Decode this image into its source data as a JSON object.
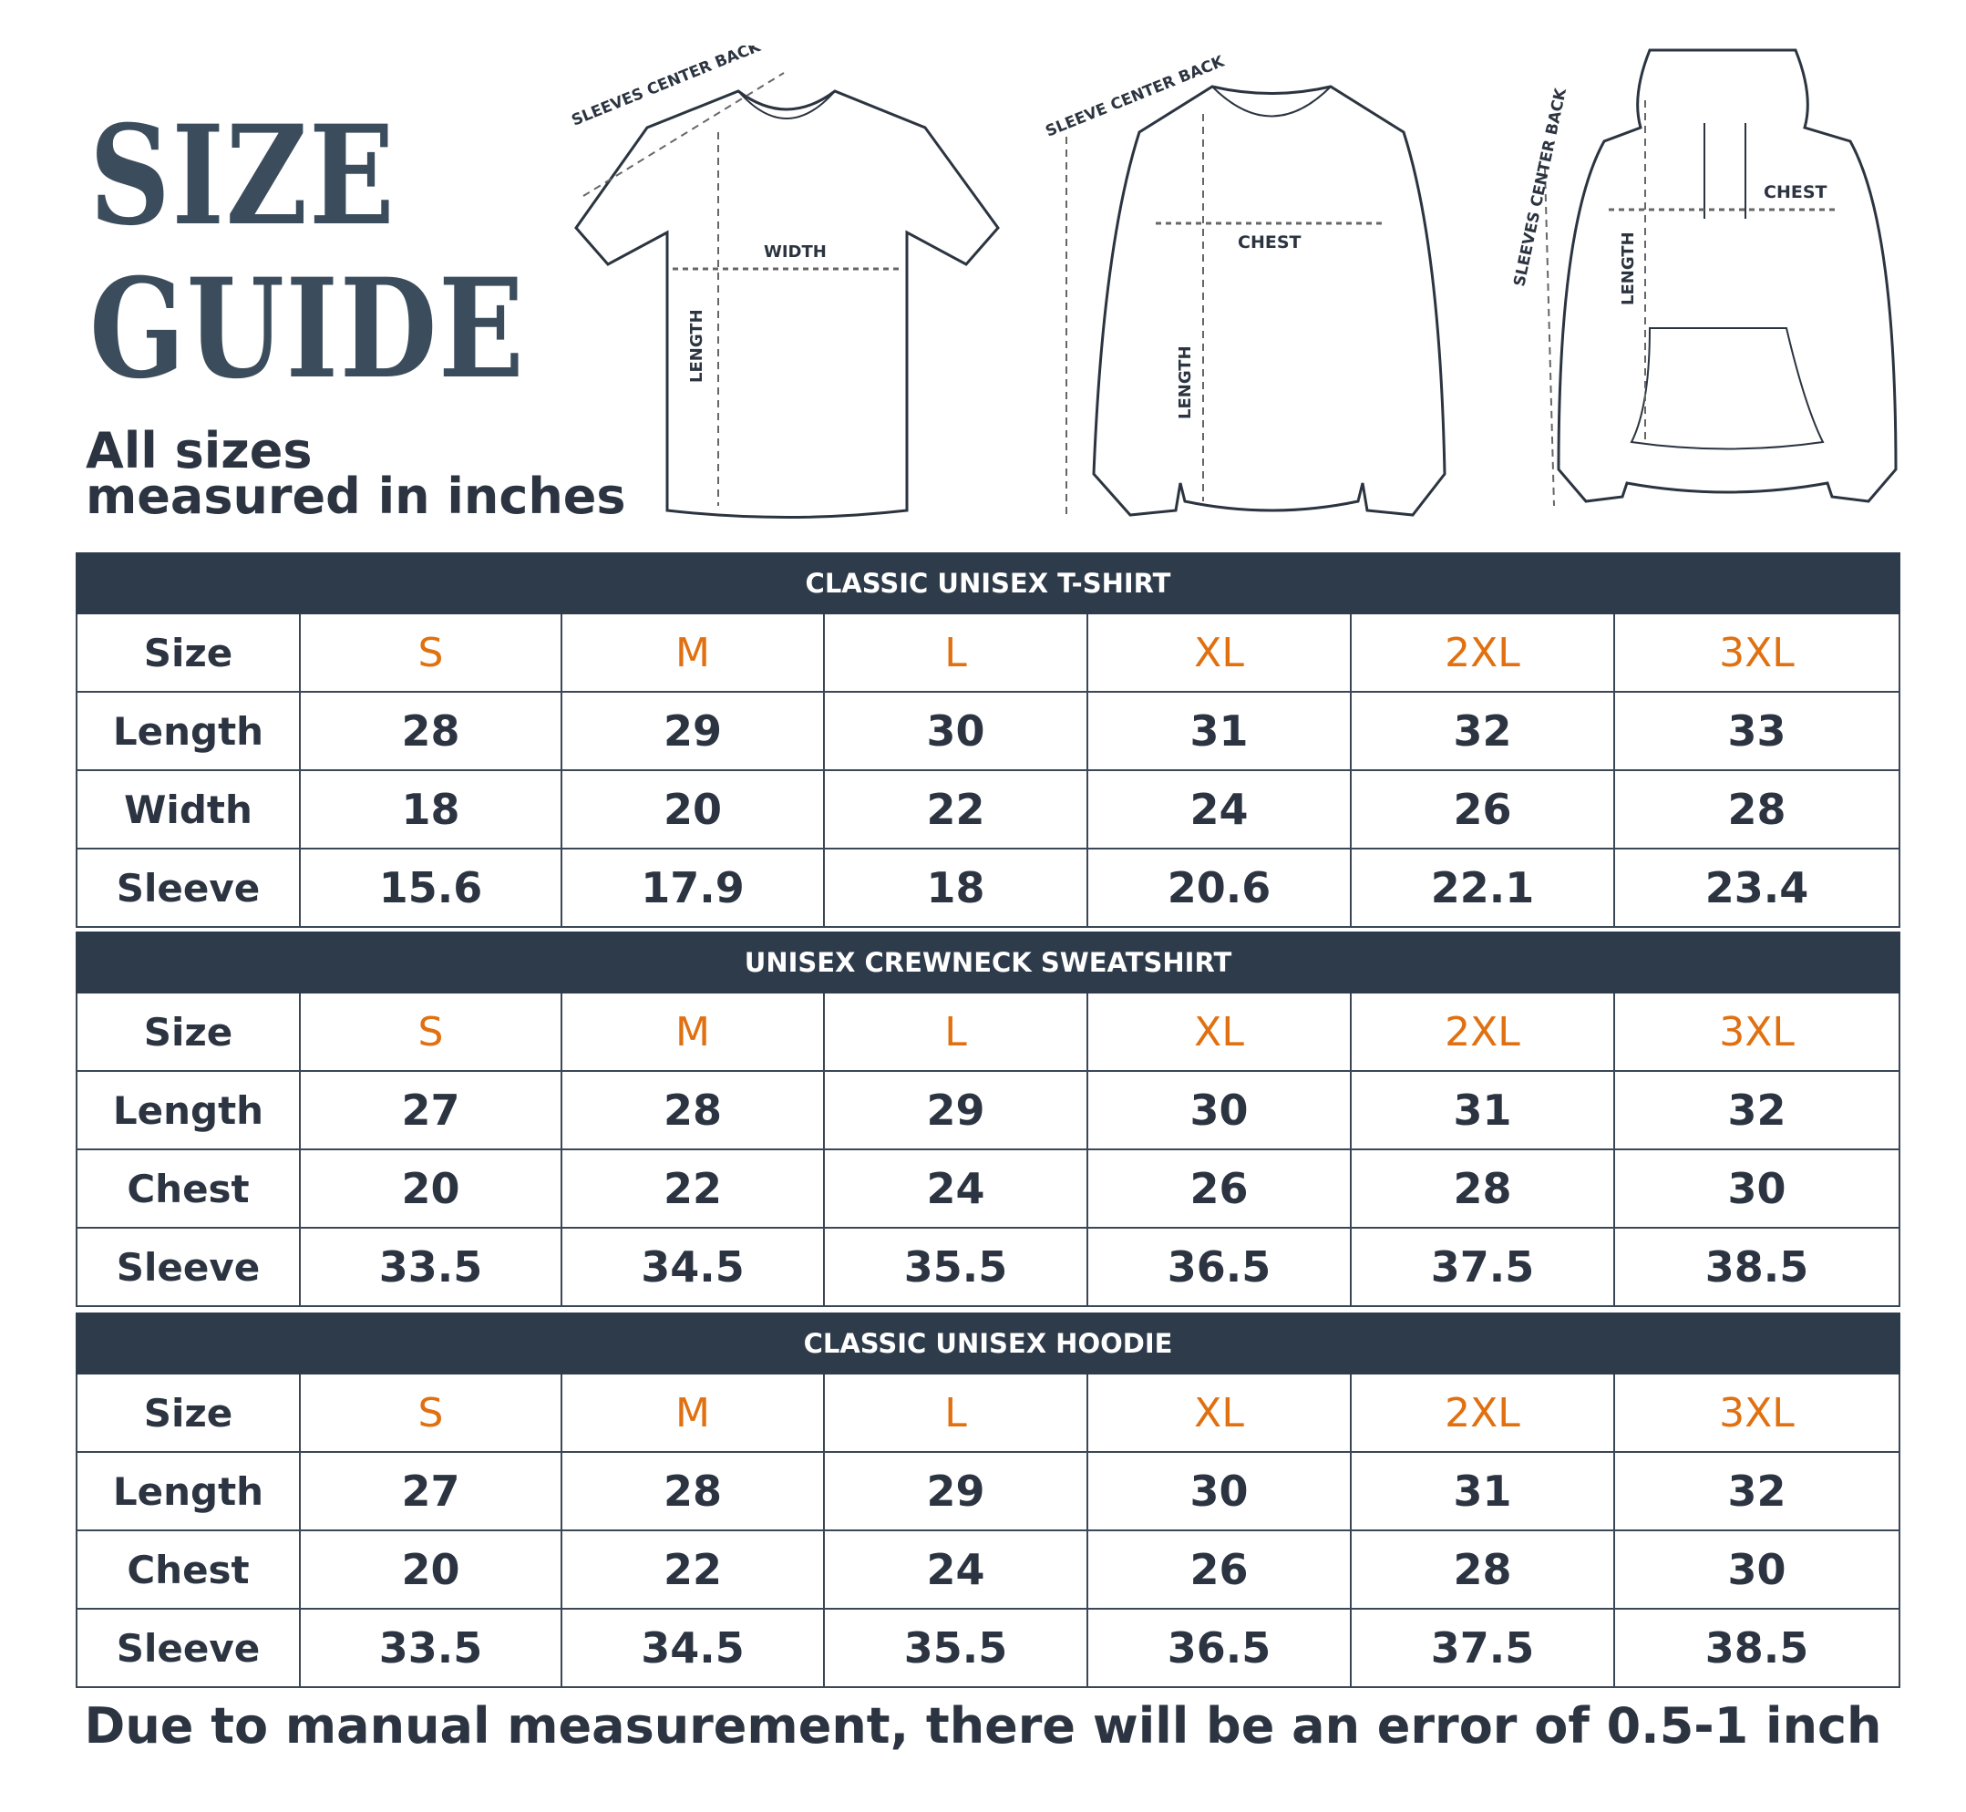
{
  "title": {
    "line1": "SIZE",
    "line2": "GUIDE"
  },
  "subtitle": {
    "line1": "All sizes",
    "line2": "measured in inches"
  },
  "diagrams": {
    "tshirt": {
      "sleeve": "SLEEVES CENTER BACK",
      "width": "WIDTH",
      "length": "LENGTH"
    },
    "sweatshirt": {
      "sleeve": "SLEEVE CENTER BACK",
      "chest": "CHEST",
      "length": "LENGTH"
    },
    "hoodie": {
      "sleeve": "SLEEVES CENTER BACK",
      "chest": "CHEST",
      "length": "LENGTH"
    }
  },
  "colors": {
    "header": "#2e3b4a",
    "size_accent": "#e07010",
    "text": "#2b3440",
    "title": "#3b4d5c"
  },
  "tables": [
    {
      "title": "CLASSIC UNISEX T-SHIRT",
      "size_label": "Size",
      "sizes": [
        "S",
        "M",
        "L",
        "XL",
        "2XL",
        "3XL"
      ],
      "rows": [
        {
          "label": "Length",
          "values": [
            "28",
            "29",
            "30",
            "31",
            "32",
            "33"
          ]
        },
        {
          "label": "Width",
          "values": [
            "18",
            "20",
            "22",
            "24",
            "26",
            "28"
          ]
        },
        {
          "label": "Sleeve",
          "values": [
            "15.6",
            "17.9",
            "18",
            "20.6",
            "22.1",
            "23.4"
          ]
        }
      ]
    },
    {
      "title": "UNISEX CREWNECK SWEATSHIRT",
      "size_label": "Size",
      "sizes": [
        "S",
        "M",
        "L",
        "XL",
        "2XL",
        "3XL"
      ],
      "rows": [
        {
          "label": "Length",
          "values": [
            "27",
            "28",
            "29",
            "30",
            "31",
            "32"
          ]
        },
        {
          "label": "Chest",
          "values": [
            "20",
            "22",
            "24",
            "26",
            "28",
            "30"
          ]
        },
        {
          "label": "Sleeve",
          "values": [
            "33.5",
            "34.5",
            "35.5",
            "36.5",
            "37.5",
            "38.5"
          ]
        }
      ]
    },
    {
      "title": "CLASSIC UNISEX HOODIE",
      "size_label": "Size",
      "sizes": [
        "S",
        "M",
        "L",
        "XL",
        "2XL",
        "3XL"
      ],
      "rows": [
        {
          "label": "Length",
          "values": [
            "27",
            "28",
            "29",
            "30",
            "31",
            "32"
          ]
        },
        {
          "label": "Chest",
          "values": [
            "20",
            "22",
            "24",
            "26",
            "28",
            "30"
          ]
        },
        {
          "label": "Sleeve",
          "values": [
            "33.5",
            "34.5",
            "35.5",
            "36.5",
            "37.5",
            "38.5"
          ]
        }
      ]
    }
  ],
  "footer": "Due to manual measurement, there will be an error of 0.5-1  inch"
}
